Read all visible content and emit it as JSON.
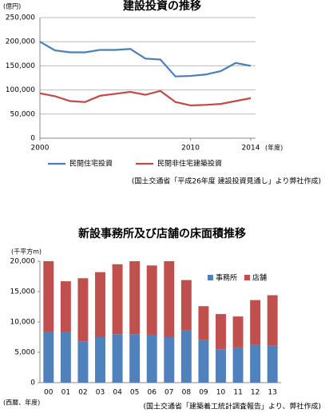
{
  "chart_data": [
    {
      "type": "line",
      "title": "建設投資の推移",
      "y_unit": "(億円)",
      "x_unit": "(年度)",
      "x": [
        2000,
        2001,
        2002,
        2003,
        2004,
        2005,
        2006,
        2007,
        2008,
        2009,
        2010,
        2011,
        2012,
        2013,
        2014
      ],
      "xlim": [
        2000,
        2014
      ],
      "xticks": [
        2000,
        2010,
        2014
      ],
      "ylim": [
        0,
        250000
      ],
      "yticks": [
        0,
        {
          "value": 50000,
          "label": "50,000"
        },
        {
          "value": 100000,
          "label": "100,000"
        },
        {
          "value": 150000,
          "label": "150,000"
        },
        {
          "value": 200000,
          "label": "200,000"
        },
        {
          "value": 250000,
          "label": "250,000"
        }
      ],
      "grid": true,
      "series": [
        {
          "name": "民間住宅投資",
          "color": "#4a7ebb",
          "values": [
            200000,
            182000,
            178000,
            178000,
            183000,
            183000,
            185000,
            165000,
            163000,
            128000,
            129000,
            132000,
            139000,
            156000,
            150000
          ]
        },
        {
          "name": "民間非住宅建築投資",
          "color": "#be4b48",
          "values": [
            93000,
            87000,
            77000,
            75000,
            88000,
            92000,
            96000,
            90000,
            98000,
            75000,
            68000,
            69000,
            71000,
            77000,
            83000
          ]
        }
      ],
      "source": "(国土交通省「平成26年度 建設投資見通し」より弊社作成)"
    },
    {
      "type": "stacked_bar",
      "title": "新設事務所及び店舗の床面積推移",
      "y_unit": "(千平方m)",
      "x_unit": "(西暦、年度)",
      "categories": [
        "00",
        "01",
        "02",
        "03",
        "04",
        "05",
        "06",
        "07",
        "08",
        "09",
        "10",
        "11",
        "12",
        "13"
      ],
      "ylim": [
        0,
        20000
      ],
      "yticks": [
        0,
        {
          "value": 5000,
          "label": "5,000"
        },
        {
          "value": 10000,
          "label": "10,000"
        },
        {
          "value": 15000,
          "label": "15,000"
        },
        {
          "value": 20000,
          "label": "20,000"
        }
      ],
      "grid": false,
      "series": [
        {
          "name": "事務所",
          "color": "#4f81bd",
          "values": [
            8300,
            8300,
            6800,
            7500,
            8000,
            8000,
            7900,
            7500,
            8600,
            7000,
            5500,
            5800,
            6200,
            6100
          ]
        },
        {
          "name": "店舗",
          "color": "#c0504d",
          "values": [
            11700,
            8400,
            10400,
            10700,
            11500,
            12000,
            11400,
            12500,
            8300,
            5600,
            5800,
            5100,
            7400,
            8300
          ]
        }
      ],
      "source": "(国土交通省「建築着工統計調査報告」より、弊社作成)"
    }
  ]
}
